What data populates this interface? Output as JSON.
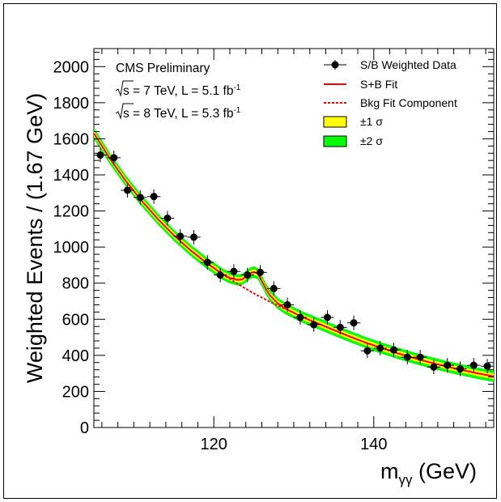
{
  "chart_data": {
    "type": "scatter",
    "title": "",
    "annotations": {
      "experiment": "CMS Preliminary",
      "run1": {
        "energy": "s = 7 TeV, L = 5.1 fb",
        "superscript": "-1"
      },
      "run2": {
        "energy": "s = 8 TeV, L = 5.3 fb",
        "superscript": "-1"
      }
    },
    "xlabel": {
      "main": "m",
      "sub": "γγ",
      "unit": " (GeV)"
    },
    "ylabel": "Weighted Events / (1.67 GeV)",
    "xlim": [
      105,
      155
    ],
    "ylim": [
      0,
      2100
    ],
    "x_ticks": [
      120,
      140
    ],
    "y_ticks": [
      0,
      200,
      400,
      600,
      800,
      1000,
      1200,
      1400,
      1600,
      1800,
      2000
    ],
    "legend": {
      "placement": "top-right",
      "entries": [
        {
          "label": "S/B Weighted Data",
          "style": "marker"
        },
        {
          "label": "S+B Fit",
          "style": "solid-line"
        },
        {
          "label": "Bkg Fit Component",
          "style": "dashed-line"
        },
        {
          "label": "±1 σ",
          "style": "band"
        },
        {
          "label": "±2 σ",
          "style": "band"
        }
      ]
    },
    "colors": {
      "data": "#000000",
      "fit": "#ff0000",
      "bkg": "#ff0000",
      "band1": "#ffff00",
      "band2": "#00ff00"
    },
    "series": [
      {
        "name": "S/B Weighted Data",
        "x": [
          105.8,
          107.5,
          109.2,
          110.8,
          112.5,
          114.2,
          115.8,
          117.5,
          119.2,
          120.8,
          122.5,
          124.2,
          125.8,
          127.5,
          129.2,
          130.8,
          132.5,
          134.2,
          135.8,
          137.5,
          139.2,
          140.8,
          142.5,
          144.2,
          145.8,
          147.5,
          149.2,
          150.8,
          152.5,
          154.2
        ],
        "y": [
          1510,
          1495,
          1315,
          1275,
          1280,
          1160,
          1060,
          1055,
          915,
          845,
          865,
          845,
          860,
          770,
          680,
          610,
          570,
          610,
          555,
          580,
          425,
          440,
          430,
          390,
          390,
          335,
          345,
          325,
          345,
          340
        ],
        "yerr": 40
      },
      {
        "name": "S+B Fit",
        "x": [
          105,
          107,
          109,
          111,
          113,
          115,
          117,
          119,
          121,
          122,
          123,
          123.5,
          124,
          124.5,
          125,
          125.5,
          126,
          126.5,
          127,
          128,
          129,
          131,
          133,
          135,
          137,
          139,
          141,
          143,
          145,
          147,
          149,
          151,
          153,
          155
        ],
        "y": [
          1630,
          1490,
          1365,
          1255,
          1155,
          1065,
          985,
          915,
          852,
          829,
          818,
          820,
          836,
          854,
          862,
          852,
          812,
          768,
          733,
          687,
          658,
          613,
          577,
          540,
          504,
          470,
          440,
          411,
          385,
          361,
          339,
          319,
          300,
          283
        ]
      },
      {
        "name": "Bkg Fit Component",
        "x": [
          117,
          119,
          121,
          123,
          125,
          127,
          129
        ],
        "y": [
          985,
          915,
          852,
          795,
          743,
          697,
          655
        ]
      }
    ]
  }
}
